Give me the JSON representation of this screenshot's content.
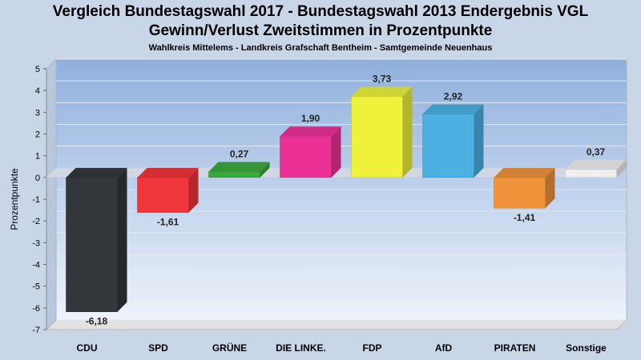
{
  "chart_data": {
    "type": "bar",
    "title": "Vergleich Bundestagswahl 2017 - Bundestagswahl 2013 Endergebnis VGL",
    "title_line2": "Gewinn/Verlust Zweitstimmen in Prozentpunkte",
    "subtitle": "Wahlkreis Mittelems - Landkreis Grafschaft Bentheim - Samtgemeinde Neuenhaus",
    "ylabel": "Prozentpunkte",
    "xlabel": "",
    "ylim": [
      -7,
      5
    ],
    "yticks": [
      "5",
      "4",
      "3",
      "2",
      "1",
      "0",
      "-1",
      "-2",
      "-3",
      "-4",
      "-5",
      "-6",
      "-7"
    ],
    "grid": true,
    "categories": [
      "CDU",
      "SPD",
      "GRÜNE",
      "DIE LINKE.",
      "FDP",
      "AfD",
      "PIRATEN",
      "Sonstige"
    ],
    "values": [
      -6.18,
      -1.61,
      0.27,
      1.9,
      3.73,
      2.92,
      -1.41,
      0.37
    ],
    "value_labels": [
      "-6,18",
      "-1,61",
      "0,27",
      "1,90",
      "3,73",
      "2,92",
      "-1,41",
      "0,37"
    ],
    "colors": [
      "#33363b",
      "#f0353b",
      "#3aa93c",
      "#ec3196",
      "#eef23b",
      "#4cb0e3",
      "#f0933b",
      "#f0f0f0"
    ]
  }
}
